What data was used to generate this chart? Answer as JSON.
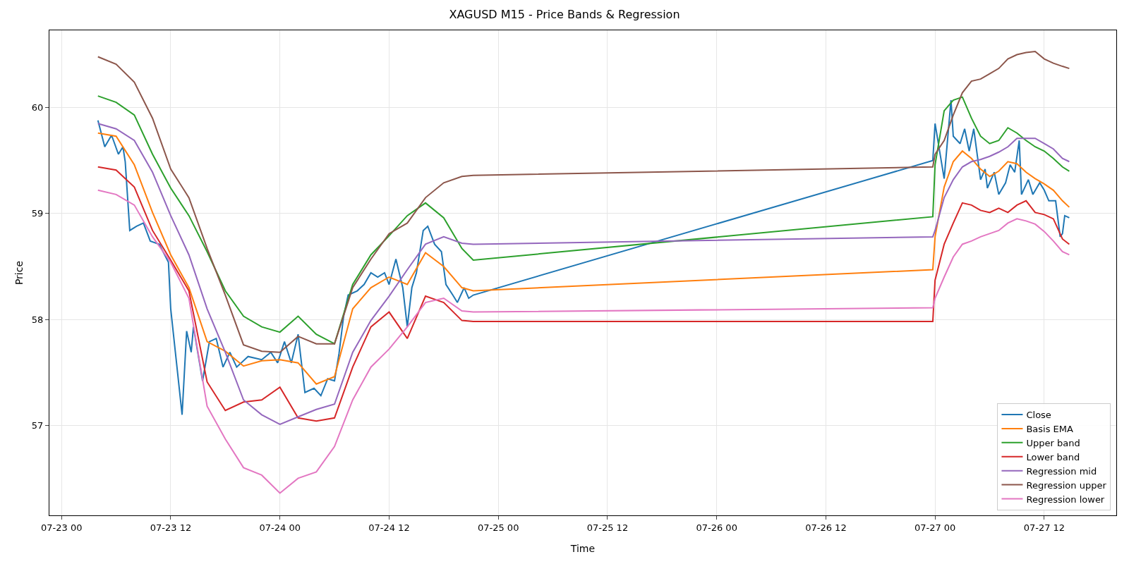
{
  "chart_data": {
    "type": "line",
    "title": "XAGUSD M15 - Price Bands & Regression",
    "xlabel": "Time",
    "ylabel": "Price",
    "x": [
      "--07-23T04:00",
      "--07-23T06:00",
      "--07-23T08:00",
      "--07-23T10:00",
      "--07-23T12:00",
      "--07-23T14:00",
      "--07-23T16:00",
      "--07-23T18:00",
      "--07-23T20:00",
      "--07-23T22:00",
      "--07-24T00:00",
      "--07-24T02:00",
      "--07-24T04:00",
      "--07-24T06:00",
      "--07-24T08:00",
      "--07-24T10:00",
      "--07-24T12:00",
      "--07-24T14:00",
      "--07-24T16:00",
      "--07-24T18:00",
      "--07-24T20:00",
      "--07-24T21:15",
      "--07-26T23:45",
      "--07-27T00:00",
      "--07-27T01:00",
      "--07-27T02:00",
      "--07-27T03:00",
      "--07-27T04:00",
      "--07-27T05:00",
      "--07-27T06:00",
      "--07-27T07:00",
      "--07-27T08:00",
      "--07-27T09:00",
      "--07-27T10:00",
      "--07-27T11:00",
      "--07-27T12:00",
      "--07-27T13:00",
      "--07-27T14:00",
      "--07-27T14:45"
    ],
    "series": [
      {
        "name": "Close",
        "color": "#1f77b4",
        "x": [
          "--07-23T04:00",
          "--07-23T04:45",
          "--07-23T05:30",
          "--07-23T06:15",
          "--07-23T06:45",
          "--07-23T07:00",
          "--07-23T07:30",
          "--07-23T08:15",
          "--07-23T09:00",
          "--07-23T09:45",
          "--07-23T10:45",
          "--07-23T11:45",
          "--07-23T12:00",
          "--07-23T13:15",
          "--07-23T13:45",
          "--07-23T14:15",
          "--07-23T14:30",
          "--07-23T15:30",
          "--07-23T16:15",
          "--07-23T17:00",
          "--07-23T17:45",
          "--07-23T18:30",
          "--07-23T19:15",
          "--07-23T20:30",
          "--07-23T22:00",
          "--07-23T23:00",
          "--07-23T23:45",
          "--07-24T00:30",
          "--07-24T01:15",
          "--07-24T02:00",
          "--07-24T02:45",
          "--07-24T03:45",
          "--07-24T04:30",
          "--07-24T05:15",
          "--07-24T06:00",
          "--07-24T06:30",
          "--07-24T07:00",
          "--07-24T07:30",
          "--07-24T08:30",
          "--07-24T09:15",
          "--07-24T10:00",
          "--07-24T10:45",
          "--07-24T11:30",
          "--07-24T12:00",
          "--07-24T12:45",
          "--07-24T13:30",
          "--07-24T14:00",
          "--07-24T14:30",
          "--07-24T15:00",
          "--07-24T15:45",
          "--07-24T16:15",
          "--07-24T17:00",
          "--07-24T17:45",
          "--07-24T18:15",
          "--07-24T19:00",
          "--07-24T19:30",
          "--07-24T20:15",
          "--07-24T20:45",
          "--07-24T21:15",
          "--07-26T23:45",
          "--07-27T00:00",
          "--07-27T01:00",
          "--07-27T01:45",
          "--07-27T02:00",
          "--07-27T02:45",
          "--07-27T03:15",
          "--07-27T03:45",
          "--07-27T04:15",
          "--07-27T05:00",
          "--07-27T05:30",
          "--07-27T05:45",
          "--07-27T06:30",
          "--07-27T07:00",
          "--07-27T07:45",
          "--07-27T08:15",
          "--07-27T08:45",
          "--07-27T09:15",
          "--07-27T09:30",
          "--07-27T10:15",
          "--07-27T10:45",
          "--07-27T11:30",
          "--07-27T12:00",
          "--07-27T12:30",
          "--07-27T13:15",
          "--07-27T13:45",
          "--07-27T14:00",
          "--07-27T14:15",
          "--07-27T14:45"
        ],
        "values": [
          59.88,
          59.63,
          59.74,
          59.56,
          59.63,
          59.49,
          58.84,
          58.88,
          58.91,
          58.74,
          58.71,
          58.54,
          58.1,
          57.1,
          57.89,
          57.69,
          57.93,
          57.42,
          57.79,
          57.82,
          57.55,
          57.69,
          57.55,
          57.65,
          57.62,
          57.69,
          57.59,
          57.79,
          57.59,
          57.86,
          57.31,
          57.35,
          57.28,
          57.44,
          57.42,
          57.68,
          58.03,
          58.23,
          58.27,
          58.33,
          58.44,
          58.4,
          58.44,
          58.33,
          58.57,
          58.3,
          57.93,
          58.3,
          58.44,
          58.84,
          58.88,
          58.71,
          58.64,
          58.33,
          58.23,
          58.16,
          58.3,
          58.2,
          58.23,
          59.5,
          59.85,
          59.33,
          60.07,
          59.73,
          59.66,
          59.8,
          59.59,
          59.8,
          59.32,
          59.42,
          59.24,
          59.39,
          59.18,
          59.29,
          59.46,
          59.39,
          59.69,
          59.18,
          59.32,
          59.18,
          59.29,
          59.22,
          59.12,
          59.12,
          58.78,
          58.81,
          58.98,
          58.96
        ]
      },
      {
        "name": "Basis EMA",
        "color": "#ff7f0e",
        "values": [
          59.76,
          59.73,
          59.46,
          59.01,
          58.61,
          58.3,
          57.79,
          57.7,
          57.56,
          57.61,
          57.62,
          57.59,
          57.39,
          57.46,
          58.1,
          58.3,
          58.4,
          58.33,
          58.63,
          58.5,
          58.3,
          58.27,
          58.47,
          58.78,
          59.25,
          59.49,
          59.59,
          59.52,
          59.42,
          59.35,
          59.4,
          59.49,
          59.47,
          59.39,
          59.33,
          59.28,
          59.22,
          59.12,
          59.06
        ]
      },
      {
        "name": "Upper band",
        "color": "#2ca02c",
        "values": [
          60.11,
          60.05,
          59.93,
          59.56,
          59.24,
          58.98,
          58.64,
          58.27,
          58.03,
          57.93,
          57.88,
          58.03,
          57.86,
          57.77,
          58.33,
          58.61,
          58.79,
          58.98,
          59.1,
          58.96,
          58.67,
          58.56,
          58.97,
          59.46,
          59.97,
          60.07,
          60.1,
          59.9,
          59.73,
          59.66,
          59.69,
          59.81,
          59.76,
          59.69,
          59.63,
          59.59,
          59.52,
          59.44,
          59.4
        ]
      },
      {
        "name": "Lower band",
        "color": "#d62728",
        "values": [
          59.44,
          59.41,
          59.25,
          58.84,
          58.56,
          58.27,
          57.41,
          57.14,
          57.22,
          57.24,
          57.36,
          57.07,
          57.04,
          57.07,
          57.55,
          57.93,
          58.07,
          57.82,
          58.22,
          58.16,
          57.99,
          57.98,
          57.98,
          58.37,
          58.71,
          58.91,
          59.1,
          59.08,
          59.03,
          59.01,
          59.05,
          59.01,
          59.08,
          59.12,
          59.01,
          58.99,
          58.95,
          58.76,
          58.71
        ]
      },
      {
        "name": "Regression mid",
        "color": "#9467bd",
        "values": [
          59.85,
          59.8,
          59.69,
          59.39,
          58.98,
          58.61,
          58.1,
          57.69,
          57.24,
          57.1,
          57.01,
          57.08,
          57.15,
          57.2,
          57.69,
          57.99,
          58.22,
          58.47,
          58.71,
          58.78,
          58.72,
          58.71,
          58.78,
          58.84,
          59.15,
          59.32,
          59.44,
          59.49,
          59.51,
          59.54,
          59.58,
          59.63,
          59.71,
          59.71,
          59.71,
          59.66,
          59.61,
          59.52,
          59.49
        ]
      },
      {
        "name": "Regression upper",
        "color": "#8c564b",
        "values": [
          60.48,
          60.41,
          60.24,
          59.9,
          59.42,
          59.15,
          58.67,
          58.23,
          57.76,
          57.7,
          57.69,
          57.84,
          57.77,
          57.77,
          58.3,
          58.57,
          58.81,
          58.91,
          59.15,
          59.29,
          59.35,
          59.36,
          59.44,
          59.56,
          59.69,
          59.93,
          60.14,
          60.25,
          60.27,
          60.32,
          60.37,
          60.46,
          60.5,
          60.52,
          60.53,
          60.46,
          60.42,
          60.39,
          60.37
        ]
      },
      {
        "name": "Regression lower",
        "color": "#e377c2",
        "values": [
          59.22,
          59.18,
          59.08,
          58.78,
          58.54,
          58.2,
          57.18,
          56.87,
          56.6,
          56.53,
          56.36,
          56.5,
          56.56,
          56.8,
          57.24,
          57.55,
          57.72,
          57.93,
          58.16,
          58.2,
          58.08,
          58.07,
          58.11,
          58.2,
          58.4,
          58.59,
          58.71,
          58.74,
          58.78,
          58.81,
          58.84,
          58.91,
          58.95,
          58.93,
          58.9,
          58.83,
          58.74,
          58.64,
          58.61
        ]
      }
    ],
    "xlim": [
      "--07-22T22:40",
      "--07-27T19:55"
    ],
    "xticks": [
      {
        "value": "--07-23T00:00",
        "label": "07-23 00"
      },
      {
        "value": "--07-23T12:00",
        "label": "07-23 12"
      },
      {
        "value": "--07-24T00:00",
        "label": "07-24 00"
      },
      {
        "value": "--07-24T12:00",
        "label": "07-24 12"
      },
      {
        "value": "--07-25T00:00",
        "label": "07-25 00"
      },
      {
        "value": "--07-25T12:00",
        "label": "07-25 12"
      },
      {
        "value": "--07-26T00:00",
        "label": "07-26 00"
      },
      {
        "value": "--07-26T12:00",
        "label": "07-26 12"
      },
      {
        "value": "--07-27T00:00",
        "label": "07-27 00"
      },
      {
        "value": "--07-27T12:00",
        "label": "07-27 12"
      }
    ],
    "ylim": [
      56.15,
      60.73
    ],
    "yticks": [
      57,
      58,
      59,
      60
    ],
    "grid": true,
    "legend": "bottom right",
    "marker": "none",
    "line_style": "solid"
  }
}
